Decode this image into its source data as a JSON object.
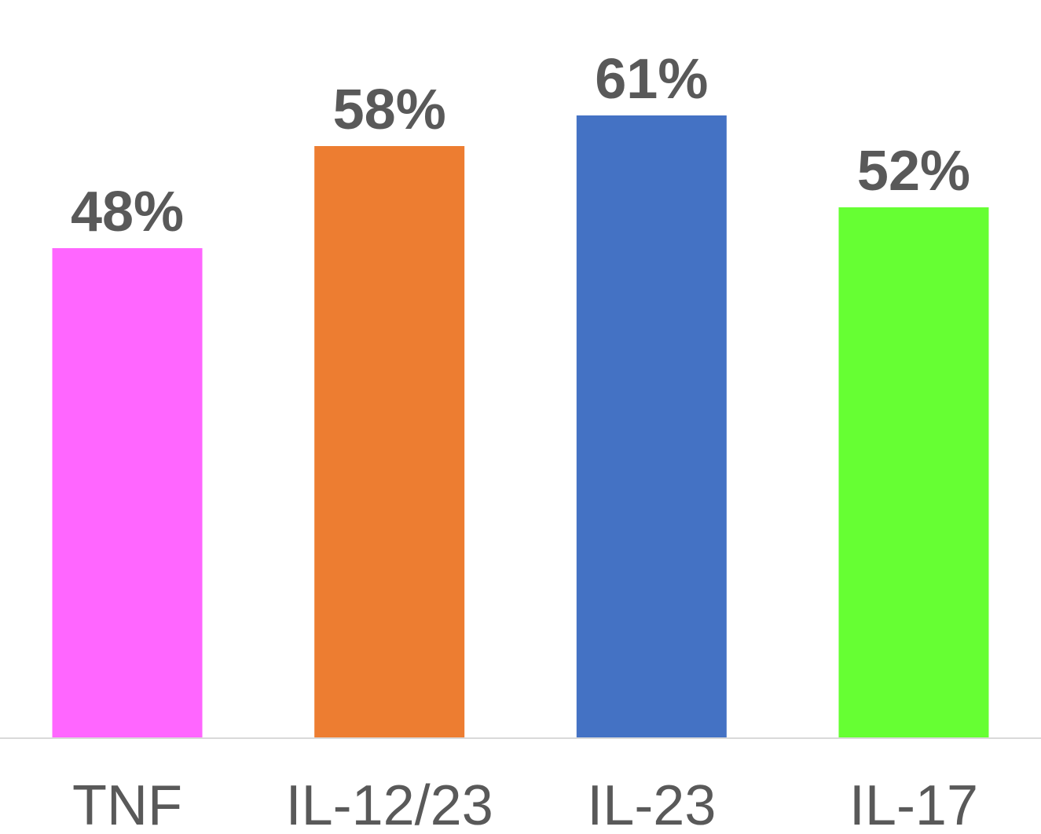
{
  "chart_data": {
    "type": "bar",
    "categories": [
      "TNF",
      "IL-12/23",
      "IL-23",
      "IL-17"
    ],
    "values": [
      48,
      58,
      61,
      52
    ],
    "data_labels": [
      "48%",
      "58%",
      "61%",
      "52%"
    ],
    "colors": [
      "#ff66ff",
      "#ed7d31",
      "#4472c4",
      "#66ff33"
    ],
    "title": "",
    "xlabel": "",
    "ylabel": "",
    "ylim": [
      0,
      61
    ],
    "grid": false,
    "legend": "none"
  }
}
